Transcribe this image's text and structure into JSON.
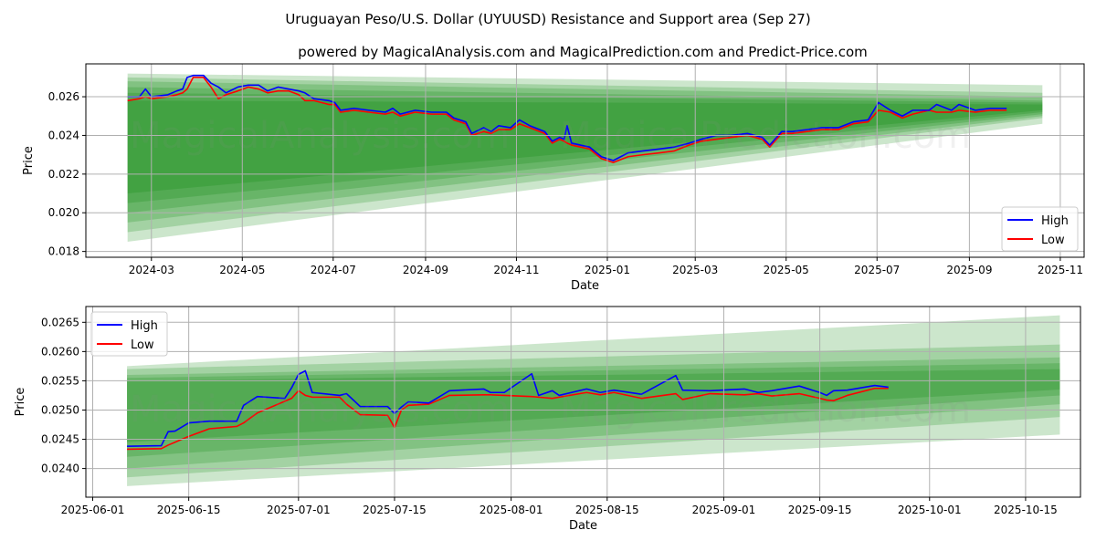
{
  "title": "Uruguayan Peso/U.S. Dollar (UYUUSD) Resistance and Support area (Sep 27)",
  "subtitle": "powered by MagicalAnalysis.com and MagicalPrediction.com and Predict-Price.com",
  "watermarks": [
    "MagicalAnalysis.com",
    "MagicalPrediction.com"
  ],
  "colors": {
    "high": "#0000ff",
    "low": "#ff0000",
    "band": "#008000",
    "grid": "#b0b0b0"
  },
  "chart_data": [
    {
      "type": "line",
      "xlabel": "Date",
      "ylabel": "Price",
      "xlim": [
        "2024-01-17",
        "2025-11-17"
      ],
      "ylim": [
        0.0177,
        0.0277
      ],
      "xticks": [
        "2024-03",
        "2024-05",
        "2024-07",
        "2024-09",
        "2024-11",
        "2025-01",
        "2025-03",
        "2025-05",
        "2025-07",
        "2025-09",
        "2025-11"
      ],
      "xtick_dates": [
        "2024-03-01",
        "2024-05-01",
        "2024-07-01",
        "2024-09-01",
        "2024-11-01",
        "2025-01-01",
        "2025-03-01",
        "2025-05-01",
        "2025-07-01",
        "2025-09-01",
        "2025-11-01"
      ],
      "yticks": [
        "0.018",
        "0.020",
        "0.022",
        "0.024",
        "0.026"
      ],
      "ytick_values": [
        0.018,
        0.02,
        0.022,
        0.024,
        0.026
      ],
      "grid": true,
      "legend": {
        "position": "lower-right",
        "entries": [
          "High",
          "Low"
        ]
      },
      "bands": {
        "start": "2024-02-14",
        "end": "2025-10-20",
        "alpha": 0.2,
        "levels": [
          [
            0.0272,
            0.0185,
            0.0266,
            0.0246
          ],
          [
            0.027,
            0.019,
            0.0262,
            0.0249
          ],
          [
            0.0268,
            0.0195,
            0.026,
            0.025
          ],
          [
            0.0265,
            0.02,
            0.0258,
            0.0251
          ],
          [
            0.0262,
            0.0205,
            0.0257,
            0.0252
          ],
          [
            0.0258,
            0.021,
            0.0256,
            0.0253
          ]
        ]
      },
      "dates": [
        "2024-02-14",
        "2024-02-22",
        "2024-02-26",
        "2024-03-01",
        "2024-03-12",
        "2024-03-18",
        "2024-03-22",
        "2024-03-25",
        "2024-03-29",
        "2024-04-05",
        "2024-04-10",
        "2024-04-15",
        "2024-04-20",
        "2024-04-28",
        "2024-05-05",
        "2024-05-12",
        "2024-05-18",
        "2024-05-25",
        "2024-06-01",
        "2024-06-08",
        "2024-06-12",
        "2024-06-18",
        "2024-06-28",
        "2024-07-02",
        "2024-07-06",
        "2024-07-15",
        "2024-07-25",
        "2024-08-05",
        "2024-08-10",
        "2024-08-15",
        "2024-08-25",
        "2024-09-05",
        "2024-09-15",
        "2024-09-20",
        "2024-09-28",
        "2024-10-02",
        "2024-10-10",
        "2024-10-15",
        "2024-10-20",
        "2024-10-28",
        "2024-11-03",
        "2024-11-10",
        "2024-11-20",
        "2024-11-25",
        "2024-11-30",
        "2024-12-03",
        "2024-12-05",
        "2024-12-08",
        "2024-12-20",
        "2024-12-28",
        "2025-01-05",
        "2025-01-15",
        "2025-01-25",
        "2025-02-05",
        "2025-02-15",
        "2025-02-25",
        "2025-03-05",
        "2025-03-15",
        "2025-03-25",
        "2025-04-05",
        "2025-04-15",
        "2025-04-20",
        "2025-04-28",
        "2025-05-05",
        "2025-05-15",
        "2025-05-25",
        "2025-06-05",
        "2025-06-15",
        "2025-06-25",
        "2025-07-02",
        "2025-07-10",
        "2025-07-18",
        "2025-07-25",
        "2025-08-05",
        "2025-08-10",
        "2025-08-20",
        "2025-08-25",
        "2025-09-05",
        "2025-09-15",
        "2025-09-26"
      ],
      "series": [
        {
          "name": "High",
          "values": [
            0.026,
            0.026,
            0.0264,
            0.026,
            0.0261,
            0.0263,
            0.0264,
            0.027,
            0.0271,
            0.0271,
            0.0267,
            0.0265,
            0.0262,
            0.0265,
            0.0266,
            0.0266,
            0.0263,
            0.0265,
            0.0264,
            0.0263,
            0.0262,
            0.0259,
            0.0258,
            0.0257,
            0.0253,
            0.0254,
            0.0253,
            0.0252,
            0.0254,
            0.0251,
            0.0253,
            0.0252,
            0.0252,
            0.0249,
            0.0247,
            0.0241,
            0.0244,
            0.0242,
            0.0245,
            0.0244,
            0.0248,
            0.0245,
            0.0242,
            0.0237,
            0.0239,
            0.0238,
            0.0245,
            0.0236,
            0.0234,
            0.0229,
            0.0227,
            0.0231,
            0.0232,
            0.0233,
            0.0234,
            0.0236,
            0.0238,
            0.024,
            0.024,
            0.0241,
            0.0239,
            0.0235,
            0.0242,
            0.0242,
            0.0243,
            0.0244,
            0.0244,
            0.0247,
            0.0248,
            0.0257,
            0.0253,
            0.025,
            0.0253,
            0.0253,
            0.0256,
            0.0253,
            0.0256,
            0.0253,
            0.0254,
            0.0254
          ]
        },
        {
          "name": "Low",
          "values": [
            0.0258,
            0.0259,
            0.026,
            0.0259,
            0.026,
            0.0261,
            0.0262,
            0.0264,
            0.027,
            0.027,
            0.0265,
            0.0259,
            0.0261,
            0.0263,
            0.0265,
            0.0264,
            0.0262,
            0.0263,
            0.0263,
            0.0261,
            0.0258,
            0.0258,
            0.0256,
            0.0256,
            0.0252,
            0.0253,
            0.0252,
            0.0251,
            0.0252,
            0.025,
            0.0252,
            0.0251,
            0.0251,
            0.0248,
            0.0246,
            0.024,
            0.0242,
            0.0241,
            0.0243,
            0.0243,
            0.0246,
            0.0244,
            0.0241,
            0.0236,
            0.0238,
            0.0237,
            0.0236,
            0.0235,
            0.0233,
            0.0228,
            0.0226,
            0.0229,
            0.023,
            0.0231,
            0.0232,
            0.0235,
            0.0237,
            0.0238,
            0.0239,
            0.024,
            0.0238,
            0.0234,
            0.0241,
            0.0241,
            0.0242,
            0.0243,
            0.0243,
            0.0246,
            0.0247,
            0.0253,
            0.0252,
            0.0249,
            0.0251,
            0.0253,
            0.0252,
            0.0252,
            0.0253,
            0.0252,
            0.0253,
            0.0253
          ]
        }
      ]
    },
    {
      "type": "line",
      "xlabel": "Date",
      "ylabel": "Price",
      "xlim": [
        "2025-05-31",
        "2025-10-23"
      ],
      "ylim": [
        0.02351,
        0.02677
      ],
      "xticks": [
        "2025-06-01",
        "2025-06-15",
        "2025-07-01",
        "2025-07-15",
        "2025-08-01",
        "2025-08-15",
        "2025-09-01",
        "2025-09-15",
        "2025-10-01",
        "2025-10-15"
      ],
      "xtick_dates": [
        "2025-06-01",
        "2025-06-15",
        "2025-07-01",
        "2025-07-15",
        "2025-08-01",
        "2025-08-15",
        "2025-09-01",
        "2025-09-15",
        "2025-10-01",
        "2025-10-15"
      ],
      "yticks": [
        "0.0240",
        "0.0245",
        "0.0250",
        "0.0255",
        "0.0260",
        "0.0265"
      ],
      "ytick_values": [
        0.024,
        0.0245,
        0.025,
        0.0255,
        0.026,
        0.0265
      ],
      "grid": true,
      "legend": {
        "position": "upper-left",
        "entries": [
          "High",
          "Low"
        ]
      },
      "bands": {
        "start": "2025-06-06",
        "end": "2025-10-20",
        "alpha": 0.2,
        "levels": [
          [
            0.02575,
            0.0237,
            0.02662,
            0.02458
          ],
          [
            0.0257,
            0.02385,
            0.02612,
            0.02488
          ],
          [
            0.0256,
            0.024,
            0.0259,
            0.0251
          ],
          [
            0.02555,
            0.0242,
            0.0258,
            0.02525
          ],
          [
            0.0255,
            0.02445,
            0.0257,
            0.02535
          ]
        ]
      },
      "dates": [
        "2025-06-06",
        "2025-06-11",
        "2025-06-12",
        "2025-06-13",
        "2025-06-15",
        "2025-06-18",
        "2025-06-22",
        "2025-06-23",
        "2025-06-25",
        "2025-06-29",
        "2025-06-30",
        "2025-07-01",
        "2025-07-02",
        "2025-07-03",
        "2025-07-07",
        "2025-07-08",
        "2025-07-10",
        "2025-07-14",
        "2025-07-15",
        "2025-07-16",
        "2025-07-17",
        "2025-07-20",
        "2025-07-23",
        "2025-07-28",
        "2025-07-29",
        "2025-07-31",
        "2025-08-04",
        "2025-08-05",
        "2025-08-07",
        "2025-08-08",
        "2025-08-12",
        "2025-08-14",
        "2025-08-16",
        "2025-08-20",
        "2025-08-25",
        "2025-08-26",
        "2025-08-30",
        "2025-09-04",
        "2025-09-06",
        "2025-09-08",
        "2025-09-12",
        "2025-09-15",
        "2025-09-16",
        "2025-09-17",
        "2025-09-19",
        "2025-09-23",
        "2025-09-25"
      ],
      "series": [
        {
          "name": "High",
          "values": [
            0.02438,
            0.02439,
            0.02463,
            0.02464,
            0.02478,
            0.02481,
            0.02481,
            0.02508,
            0.02523,
            0.0252,
            0.02538,
            0.02561,
            0.02567,
            0.0253,
            0.02525,
            0.02528,
            0.02506,
            0.02506,
            0.02494,
            0.02505,
            0.02514,
            0.02512,
            0.02533,
            0.02536,
            0.0253,
            0.0253,
            0.02562,
            0.02525,
            0.02533,
            0.02525,
            0.02536,
            0.0253,
            0.02534,
            0.02527,
            0.02559,
            0.02534,
            0.02533,
            0.02536,
            0.0253,
            0.02533,
            0.02541,
            0.0253,
            0.02525,
            0.02533,
            0.02534,
            0.02542,
            0.02539
          ]
        },
        {
          "name": "Low",
          "values": [
            0.02433,
            0.02434,
            0.0244,
            0.02445,
            0.02455,
            0.02468,
            0.02472,
            0.02478,
            0.02495,
            0.02515,
            0.0252,
            0.02533,
            0.02525,
            0.02522,
            0.02522,
            0.0251,
            0.02492,
            0.02491,
            0.0247,
            0.025,
            0.02508,
            0.0251,
            0.02525,
            0.02526,
            0.02526,
            0.02525,
            0.02523,
            0.02522,
            0.0252,
            0.02522,
            0.0253,
            0.02526,
            0.0253,
            0.0252,
            0.02528,
            0.02518,
            0.02528,
            0.02526,
            0.02528,
            0.02524,
            0.02528,
            0.0252,
            0.02517,
            0.02516,
            0.02525,
            0.02537,
            0.02537
          ]
        }
      ]
    }
  ]
}
